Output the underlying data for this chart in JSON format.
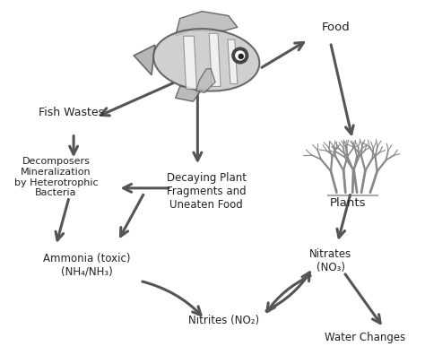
{
  "background_color": "#ffffff",
  "text_color": "#222222",
  "arrow_color": "#555555",
  "labels": {
    "food": "Food",
    "plants": "Plants",
    "nitrates": "Nitrates\n(NO₃)",
    "nitrites": "Nitrites (NO₂)",
    "water_changes": "Water Changes",
    "ammonia": "Ammonia (toxic)\n(NH₄/NH₃)",
    "decomposers": "Decomposers\nMineralization\nby Heterotrophic\nBacteria",
    "fish_wastes": "Fish Wastes",
    "decaying": "Decaying Plant\nFragments and\nUneaten Food"
  },
  "font_size": 8.5
}
